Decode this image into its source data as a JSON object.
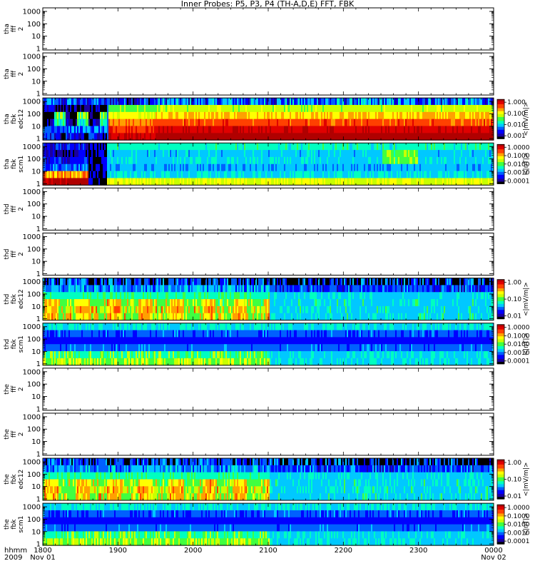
{
  "title": "Inner Probes: P5, P3, P4 (TH-A,D,E) FFT, FBK",
  "chart_data": {
    "type": "heatmap",
    "x_ticks": [
      "1800",
      "1900",
      "2000",
      "2100",
      "2200",
      "2300",
      "0000"
    ],
    "x_row_labels": [
      "hhmm",
      "2009"
    ],
    "date_labels": {
      "start": "Nov 01",
      "end": "Nov 02"
    },
    "y_ticks": [
      "1",
      "10",
      "100",
      "1000"
    ],
    "colors": {
      "colormap": [
        "#000000",
        "#1a00a0",
        "#0000ff",
        "#0060ff",
        "#00c8ff",
        "#00ffc0",
        "#40ff40",
        "#c8ff00",
        "#ffff00",
        "#ffa000",
        "#ff4000",
        "#e00000",
        "#b00000"
      ]
    },
    "panels": [
      {
        "label": [
          "tha",
          "fff",
          "2"
        ],
        "kind": "empty"
      },
      {
        "label": [
          "tha",
          "fff",
          "2"
        ],
        "kind": "empty"
      },
      {
        "label": [
          "tha",
          "fbk",
          "edc12"
        ],
        "kind": "spectrogram",
        "style": "tha_e",
        "colorbar": {
          "ticks": [
            "1.000",
            "0.100",
            "0.010",
            "0.001"
          ],
          "unit": "<|mV/m|>"
        }
      },
      {
        "label": [
          "tha",
          "fbk",
          "scm1"
        ],
        "kind": "spectrogram",
        "style": "tha_b",
        "colorbar": {
          "ticks": [
            "1.0000",
            "0.1000",
            "0.0100",
            "0.0010",
            "0.0001"
          ],
          "unit": "<|nT|>"
        }
      },
      {
        "label": [
          "thd",
          "fff",
          "2"
        ],
        "kind": "empty"
      },
      {
        "label": [
          "thd",
          "fff",
          "2"
        ],
        "kind": "empty"
      },
      {
        "label": [
          "thd",
          "fbk",
          "edc12"
        ],
        "kind": "spectrogram",
        "style": "thd_e",
        "colorbar": {
          "ticks": [
            "1.00",
            "0.10",
            "0.01"
          ],
          "unit": "<|mV/m|>"
        }
      },
      {
        "label": [
          "thd",
          "fbk",
          "scm1"
        ],
        "kind": "spectrogram",
        "style": "thd_b",
        "colorbar": {
          "ticks": [
            "1.0000",
            "0.1000",
            "0.0100",
            "0.0010",
            "0.0001"
          ],
          "unit": "<|nT|>"
        }
      },
      {
        "label": [
          "the",
          "fff",
          "2"
        ],
        "kind": "empty"
      },
      {
        "label": [
          "the",
          "fff",
          "2"
        ],
        "kind": "empty"
      },
      {
        "label": [
          "the",
          "fbk",
          "edc12"
        ],
        "kind": "spectrogram",
        "style": "the_e",
        "colorbar": {
          "ticks": [
            "1.00",
            "0.10",
            "0.01"
          ],
          "unit": "<|mV/m|>"
        }
      },
      {
        "label": [
          "the",
          "fbk",
          "scm1"
        ],
        "kind": "spectrogram",
        "style": "the_b",
        "colorbar": {
          "ticks": [
            "1.0000",
            "0.1000",
            "0.0100",
            "0.0010",
            "0.0001"
          ],
          "unit": "<|nT|>"
        }
      }
    ]
  }
}
